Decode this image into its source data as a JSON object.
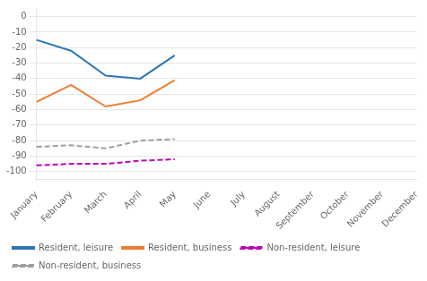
{
  "chart_data": {
    "type": "line",
    "categories": [
      "January",
      "February",
      "March",
      "April",
      "May",
      "June",
      "July",
      "August",
      "September",
      "October",
      "November",
      "December"
    ],
    "series": [
      {
        "name": "Resident, leisure",
        "color": "#2e75b6",
        "line_style": "solid",
        "values": [
          -15,
          -22,
          -38,
          -40,
          -25,
          null,
          null,
          null,
          null,
          null,
          null,
          null
        ]
      },
      {
        "name": "Resident, business",
        "color": "#ed7d31",
        "line_style": "solid",
        "values": [
          -55,
          -44,
          -58,
          -54,
          -41,
          null,
          null,
          null,
          null,
          null,
          null,
          null
        ]
      },
      {
        "name": "Non-resident, leisure",
        "color": "#bf00bf",
        "line_style": "dashed",
        "values": [
          -96,
          -95,
          -95,
          -93,
          -92,
          null,
          null,
          null,
          null,
          null,
          null,
          null
        ]
      },
      {
        "name": "Non-resident, business",
        "color": "#a0a0a0",
        "line_style": "dashed",
        "values": [
          -84,
          -83,
          -85,
          -80,
          -79,
          null,
          null,
          null,
          null,
          null,
          null,
          null
        ]
      }
    ],
    "ylim": [
      -105,
      5
    ],
    "yticks": [
      0,
      -10,
      -20,
      -30,
      -40,
      -50,
      -60,
      -70,
      -80,
      -90,
      -100
    ],
    "grid": true,
    "legend": "bottom"
  }
}
